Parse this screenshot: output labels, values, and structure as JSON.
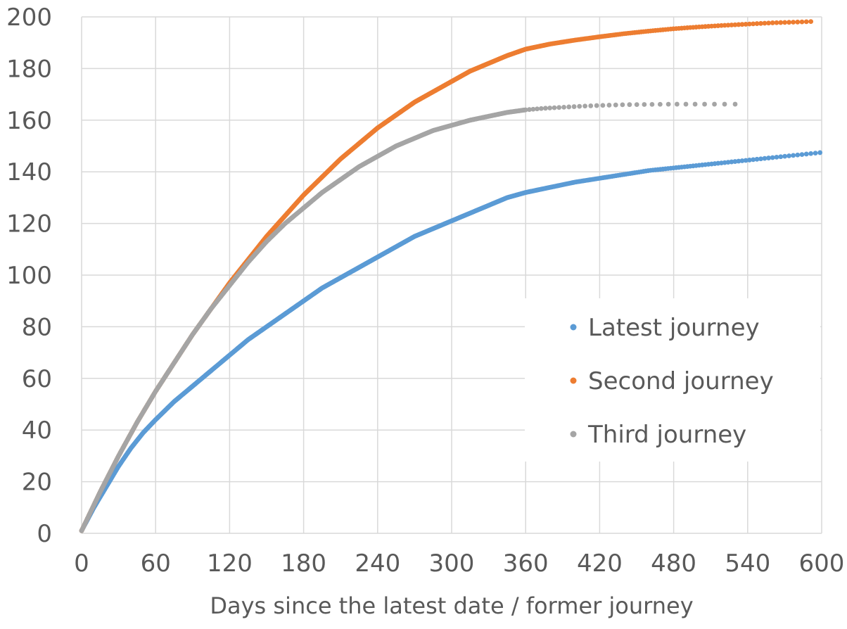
{
  "chart_data": {
    "type": "scatter",
    "title": "",
    "xlabel": "Days since the latest date  / former journey",
    "ylabel": "",
    "xlim": [
      0,
      600
    ],
    "ylim": [
      0,
      200
    ],
    "x_ticks": [
      0,
      60,
      120,
      180,
      240,
      300,
      360,
      420,
      480,
      540,
      600
    ],
    "y_ticks": [
      0,
      20,
      40,
      60,
      80,
      100,
      120,
      140,
      160,
      180,
      200
    ],
    "grid": true,
    "legend_position": "right",
    "series": [
      {
        "name": "Latest journey",
        "color": "#5b9bd5",
        "points": [
          [
            0,
            1
          ],
          [
            10,
            10
          ],
          [
            20,
            18
          ],
          [
            30,
            26
          ],
          [
            40,
            33
          ],
          [
            50,
            39
          ],
          [
            60,
            44
          ],
          [
            75,
            51
          ],
          [
            90,
            57
          ],
          [
            105,
            63
          ],
          [
            120,
            69
          ],
          [
            135,
            75
          ],
          [
            150,
            80
          ],
          [
            165,
            85
          ],
          [
            180,
            90
          ],
          [
            195,
            95
          ],
          [
            210,
            99
          ],
          [
            225,
            103
          ],
          [
            240,
            107
          ],
          [
            255,
            111
          ],
          [
            270,
            115
          ],
          [
            285,
            118
          ],
          [
            300,
            121
          ],
          [
            315,
            124
          ],
          [
            330,
            127
          ],
          [
            345,
            130
          ],
          [
            360,
            132
          ],
          [
            380,
            134
          ],
          [
            400,
            136
          ],
          [
            420,
            137.5
          ],
          [
            440,
            139
          ],
          [
            460,
            140.5
          ],
          [
            480,
            141.5
          ],
          [
            500,
            142.5
          ],
          [
            520,
            143.5
          ],
          [
            540,
            144.5
          ],
          [
            560,
            145.5
          ],
          [
            580,
            146.5
          ],
          [
            600,
            147.5
          ]
        ]
      },
      {
        "name": "Second journey",
        "color": "#ed7d31",
        "points": [
          [
            0,
            1
          ],
          [
            15,
            16
          ],
          [
            30,
            30
          ],
          [
            45,
            43
          ],
          [
            60,
            55
          ],
          [
            75,
            66
          ],
          [
            90,
            77
          ],
          [
            105,
            87
          ],
          [
            120,
            97
          ],
          [
            135,
            106
          ],
          [
            150,
            115
          ],
          [
            165,
            123
          ],
          [
            180,
            131
          ],
          [
            195,
            138
          ],
          [
            210,
            145
          ],
          [
            225,
            151
          ],
          [
            240,
            157
          ],
          [
            255,
            162
          ],
          [
            270,
            167
          ],
          [
            285,
            171
          ],
          [
            300,
            175
          ],
          [
            315,
            179
          ],
          [
            330,
            182
          ],
          [
            345,
            185
          ],
          [
            360,
            187.5
          ],
          [
            380,
            189.5
          ],
          [
            400,
            191
          ],
          [
            420,
            192.3
          ],
          [
            440,
            193.5
          ],
          [
            460,
            194.5
          ],
          [
            480,
            195.4
          ],
          [
            500,
            196.1
          ],
          [
            520,
            196.7
          ],
          [
            540,
            197.2
          ],
          [
            560,
            197.7
          ],
          [
            580,
            198
          ],
          [
            592,
            198.2
          ]
        ]
      },
      {
        "name": "Third journey",
        "color": "#a5a5a5",
        "points": [
          [
            0,
            1
          ],
          [
            15,
            16
          ],
          [
            30,
            30
          ],
          [
            45,
            43
          ],
          [
            60,
            55
          ],
          [
            75,
            66
          ],
          [
            90,
            77
          ],
          [
            105,
            87
          ],
          [
            120,
            96
          ],
          [
            135,
            105
          ],
          [
            150,
            113
          ],
          [
            165,
            120
          ],
          [
            180,
            126
          ],
          [
            195,
            132
          ],
          [
            210,
            137
          ],
          [
            225,
            142
          ],
          [
            240,
            146
          ],
          [
            255,
            150
          ],
          [
            270,
            153
          ],
          [
            285,
            156
          ],
          [
            300,
            158
          ],
          [
            315,
            160
          ],
          [
            330,
            161.5
          ],
          [
            345,
            163
          ],
          [
            360,
            164
          ],
          [
            375,
            164.6
          ],
          [
            390,
            165
          ],
          [
            405,
            165.4
          ],
          [
            420,
            165.7
          ],
          [
            440,
            166
          ],
          [
            460,
            166.1
          ],
          [
            480,
            166.2
          ],
          [
            500,
            166.2
          ],
          [
            520,
            166.2
          ],
          [
            535,
            166.2
          ]
        ]
      }
    ]
  }
}
